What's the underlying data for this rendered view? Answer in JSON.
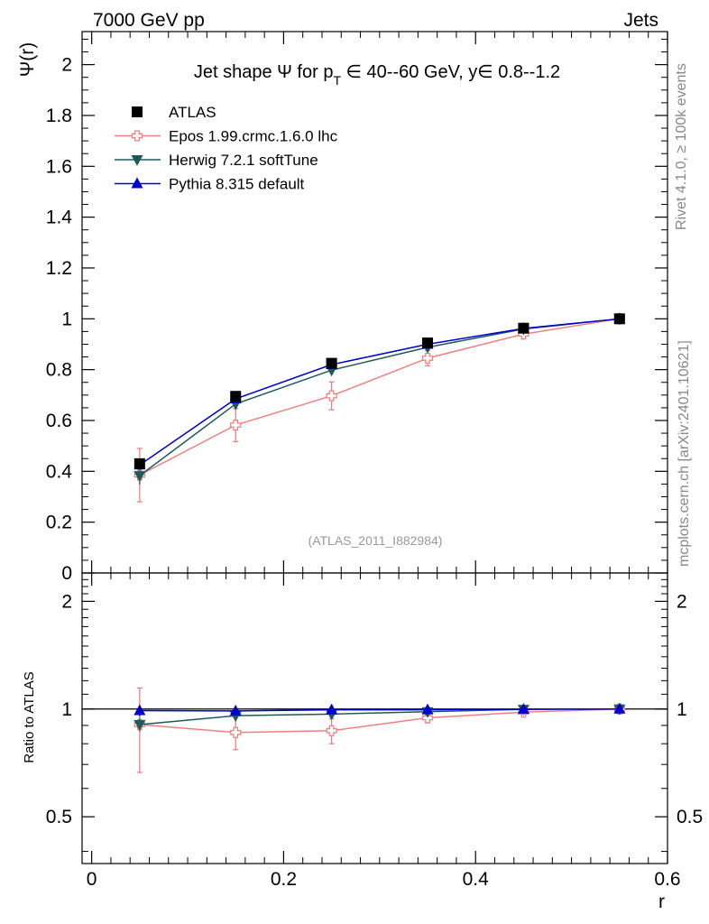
{
  "header": {
    "left": "7000 GeV pp",
    "right": "Jets"
  },
  "side_text": {
    "rivet": "Rivet 4.1.0, ≥ 100k events",
    "mcplots": "mcplots.cern.ch [arXiv:2401.10621]"
  },
  "colors": {
    "atlas": "#000000",
    "epos": "#f08080",
    "herwig": "#1f5a5a",
    "pythia": "#0000cc",
    "watermark": "#999999"
  },
  "chart_data": [
    {
      "type": "line",
      "title": "Jet shape Ψ for p_T ∈ 40--60 GeV, y∈ 0.8--1.2",
      "title_parts": {
        "prefix": "Jet shape Ψ for p",
        "sub": "T",
        "suffix": " ∈ 40--60 GeV, y∈ 0.8--1.2"
      },
      "xlabel": "r",
      "ylabel": "Ψ(r)",
      "xlim": [
        -0.01,
        0.6
      ],
      "ylim": [
        0,
        2.13
      ],
      "xticks": [
        0,
        0.2,
        0.4,
        0.6
      ],
      "xtick_labels": [
        "0",
        "0.2",
        "0.4",
        "0.6"
      ],
      "yticks": [
        0,
        0.2,
        0.4,
        0.6,
        0.8,
        1,
        1.2,
        1.4,
        1.6,
        1.8,
        2
      ],
      "ytick_labels": [
        "0",
        "0.2",
        "0.4",
        "0.6",
        "0.8",
        "1",
        "1.2",
        "1.4",
        "1.6",
        "1.8",
        "2"
      ],
      "watermark": "(ATLAS_2011_I882984)",
      "legend_position": "top-left",
      "x": [
        0.05,
        0.15,
        0.25,
        0.35,
        0.45,
        0.55
      ],
      "series": [
        {
          "key": "atlas",
          "name": "ATLAS",
          "marker": "square",
          "values": [
            0.43,
            0.695,
            0.825,
            0.905,
            0.963,
            1.0
          ],
          "errors": [
            0.015,
            0.01,
            0.01,
            0.008,
            0.005,
            0.0
          ]
        },
        {
          "key": "epos",
          "name": "Epos 1.99.crmc.1.6.0 lhc",
          "marker": "open-cross",
          "values": [
            0.385,
            0.582,
            0.697,
            0.845,
            0.94,
            1.0
          ],
          "errors": [
            0.105,
            0.065,
            0.055,
            0.03,
            0.015,
            0.0
          ]
        },
        {
          "key": "herwig",
          "name": "Herwig 7.2.1 softTune",
          "marker": "triangle-down",
          "values": [
            0.383,
            0.665,
            0.798,
            0.888,
            0.96,
            1.0
          ],
          "errors": [
            0.035,
            0.01,
            0.008,
            0.006,
            0.004,
            0.0
          ]
        },
        {
          "key": "pythia",
          "name": "Pythia 8.315 default",
          "marker": "triangle-up",
          "values": [
            0.425,
            0.685,
            0.82,
            0.9,
            0.962,
            1.0
          ],
          "errors": [
            0.015,
            0.008,
            0.006,
            0.005,
            0.003,
            0.0
          ]
        }
      ]
    },
    {
      "type": "line",
      "title": "",
      "xlabel": "r",
      "ylabel": "Ratio to ATLAS",
      "xlim": [
        -0.01,
        0.6
      ],
      "ylim": [
        0.37,
        2.4
      ],
      "log_y": true,
      "yticks": [
        0.5,
        1,
        2
      ],
      "ytick_labels": [
        "0.5",
        "1",
        "2"
      ],
      "reference_line": 1.0,
      "x": [
        0.05,
        0.15,
        0.25,
        0.35,
        0.45,
        0.55
      ],
      "series": [
        {
          "key": "epos",
          "name": "Epos 1.99.crmc.1.6.0 lhc",
          "marker": "open-cross",
          "values": [
            0.905,
            0.86,
            0.87,
            0.945,
            0.98,
            1.0
          ],
          "errors": [
            0.24,
            0.09,
            0.07,
            0.03,
            0.015,
            0.0
          ]
        },
        {
          "key": "herwig",
          "name": "Herwig 7.2.1 softTune",
          "marker": "triangle-down",
          "values": [
            0.905,
            0.958,
            0.968,
            0.983,
            0.998,
            1.0
          ],
          "errors": [
            0.04,
            0.012,
            0.01,
            0.007,
            0.004,
            0.0
          ]
        },
        {
          "key": "pythia",
          "name": "Pythia 8.315 default",
          "marker": "triangle-up",
          "values": [
            0.99,
            0.988,
            0.995,
            0.995,
            0.999,
            1.0
          ],
          "errors": [
            0.035,
            0.01,
            0.008,
            0.006,
            0.004,
            0.0
          ]
        }
      ]
    }
  ]
}
